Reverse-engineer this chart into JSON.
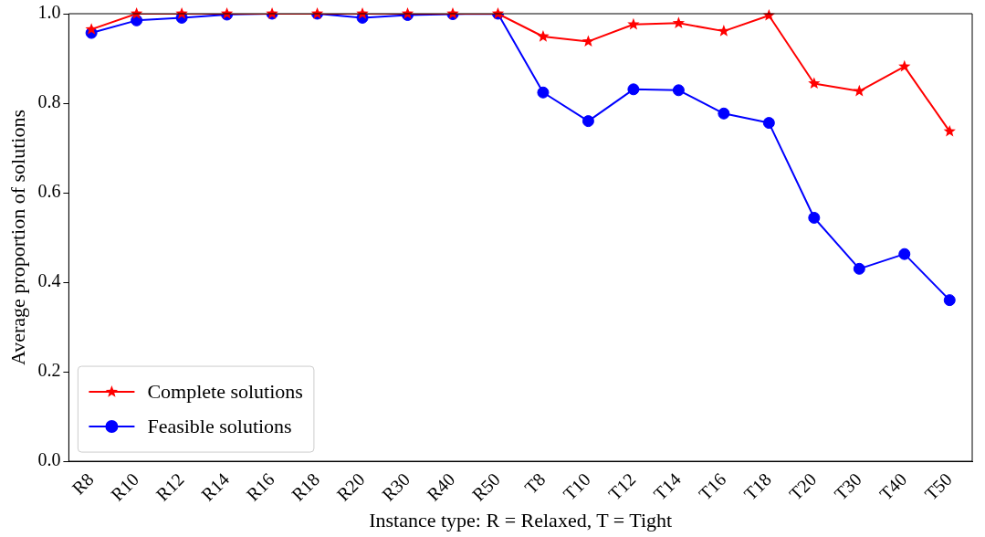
{
  "chart_data": {
    "type": "line",
    "xlabel": "Instance type: R = Relaxed, T = Tight",
    "ylabel": "Average proportion of solutions",
    "categories": [
      "R8",
      "R10",
      "R12",
      "R14",
      "R16",
      "R18",
      "R20",
      "R30",
      "R40",
      "R50",
      "T8",
      "T10",
      "T12",
      "T14",
      "T16",
      "T18",
      "T20",
      "T30",
      "T40",
      "T50"
    ],
    "series": [
      {
        "name": "Complete solutions",
        "color": "#ff0000",
        "marker": "star",
        "values": [
          0.965,
          1.0,
          1.0,
          1.0,
          1.0,
          1.0,
          1.0,
          1.0,
          1.0,
          1.0,
          0.949,
          0.938,
          0.976,
          0.979,
          0.961,
          0.996,
          0.844,
          0.827,
          0.882,
          0.737
        ]
      },
      {
        "name": "Feasible solutions",
        "color": "#0000ff",
        "marker": "circle",
        "values": [
          0.957,
          0.985,
          0.991,
          0.998,
          1.0,
          1.0,
          0.991,
          0.997,
          0.999,
          1.0,
          0.824,
          0.76,
          0.831,
          0.829,
          0.777,
          0.756,
          0.544,
          0.43,
          0.463,
          0.36
        ]
      }
    ],
    "ylim": [
      0,
      1
    ],
    "yticks": [
      {
        "value": 0,
        "label": "0.0"
      },
      {
        "value": 0.2,
        "label": "0.2"
      },
      {
        "value": 0.4,
        "label": "0.4"
      },
      {
        "value": 0.6,
        "label": "0.6"
      },
      {
        "value": 0.8,
        "label": "0.8"
      },
      {
        "value": 1,
        "label": "1.0"
      }
    ],
    "legend": "bottom left",
    "grid": false,
    "line_style": "solid"
  }
}
